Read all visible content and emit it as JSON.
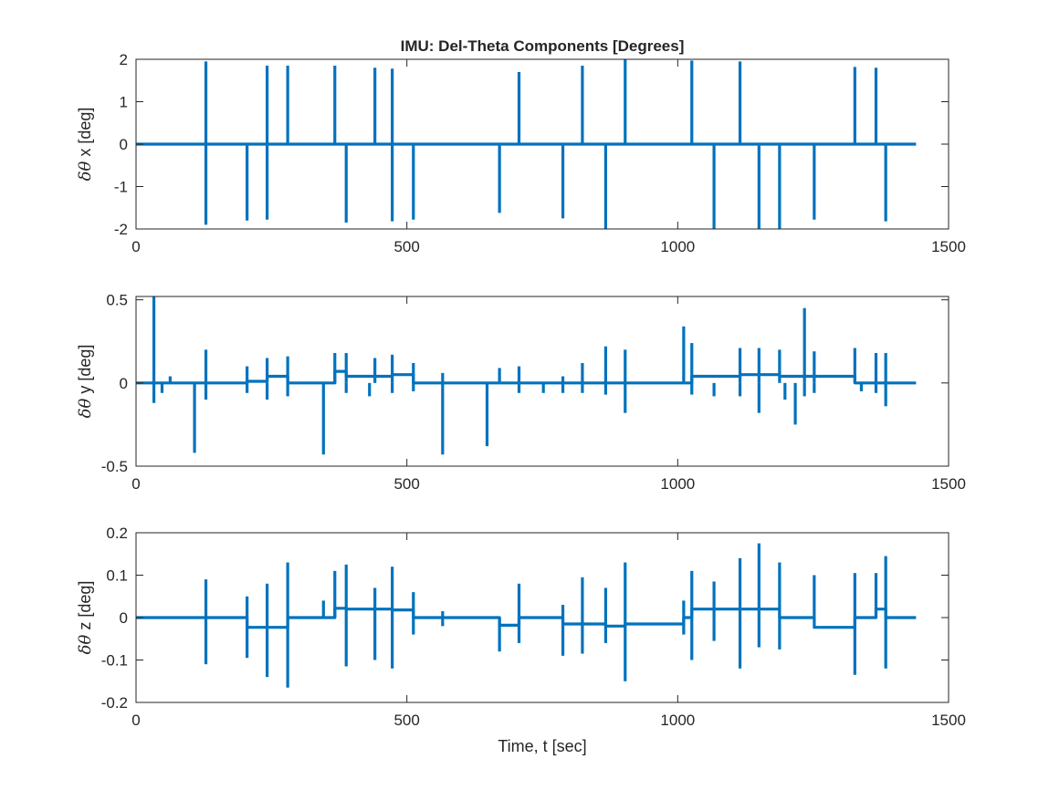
{
  "figure": {
    "title": "IMU: Del-Theta Components [Degrees]",
    "xlabel": "Time, t [sec]"
  },
  "colors": {
    "series": "#0072BD",
    "axes": "#262626",
    "background": "#ffffff"
  },
  "chart_data": [
    {
      "type": "line",
      "title": "IMU: Del-Theta Components [Degrees]",
      "ylabel_prefix": "δθ",
      "ylabel_suffix": " x [deg]",
      "xlim": [
        0,
        1500
      ],
      "ylim": [
        -2,
        2
      ],
      "xticks": [
        0,
        500,
        1000,
        1500
      ],
      "xtick_labels": [
        "0",
        "500",
        "1000",
        "1500"
      ],
      "yticks": [
        -2,
        -1,
        0,
        1,
        2
      ],
      "ytick_labels": [
        "-2",
        "-1",
        "0",
        "1",
        "2"
      ],
      "grid": false,
      "series": [
        {
          "baseline": [
            [
              0,
              0
            ],
            [
              1440,
              0
            ]
          ],
          "spikes": [
            [
              129,
              1.95
            ],
            [
              129,
              -1.9
            ],
            [
              205,
              -1.8
            ],
            [
              242,
              1.85
            ],
            [
              242,
              -1.78
            ],
            [
              280,
              1.85
            ],
            [
              367,
              1.85
            ],
            [
              388,
              -1.85
            ],
            [
              441,
              1.8
            ],
            [
              473,
              1.78
            ],
            [
              473,
              -1.82
            ],
            [
              512,
              -1.78
            ],
            [
              671,
              -1.62
            ],
            [
              707,
              1.7
            ],
            [
              788,
              -1.75
            ],
            [
              824,
              1.85
            ],
            [
              867,
              -2.0
            ],
            [
              903,
              2.0
            ],
            [
              1026,
              1.97
            ],
            [
              1067,
              -2.0
            ],
            [
              1115,
              1.95
            ],
            [
              1150,
              -2.0
            ],
            [
              1188,
              -2.0
            ],
            [
              1252,
              -1.78
            ],
            [
              1327,
              1.82
            ],
            [
              1366,
              1.8
            ],
            [
              1384,
              -1.82
            ]
          ]
        }
      ]
    },
    {
      "type": "line",
      "ylabel_prefix": "δθ",
      "ylabel_suffix": " y [deg]",
      "xlim": [
        0,
        1500
      ],
      "ylim": [
        -0.5,
        0.52
      ],
      "xticks": [
        0,
        500,
        1000,
        1500
      ],
      "xtick_labels": [
        "0",
        "500",
        "1000",
        "1500"
      ],
      "yticks": [
        -0.5,
        0,
        0.5
      ],
      "ytick_labels": [
        "-0.5",
        "0",
        "0.5"
      ],
      "grid": false,
      "series": [
        {
          "baseline": [
            [
              0,
              0
            ],
            [
              205,
              0
            ],
            [
              205,
              0.01
            ],
            [
              242,
              0.01
            ],
            [
              242,
              0.04
            ],
            [
              280,
              0.04
            ],
            [
              280,
              0
            ],
            [
              367,
              0
            ],
            [
              367,
              0.07
            ],
            [
              388,
              0.07
            ],
            [
              388,
              0.04
            ],
            [
              473,
              0.04
            ],
            [
              473,
              0.05
            ],
            [
              512,
              0.05
            ],
            [
              512,
              0
            ],
            [
              1026,
              0
            ],
            [
              1026,
              0.04
            ],
            [
              1115,
              0.04
            ],
            [
              1115,
              0.05
            ],
            [
              1188,
              0.05
            ],
            [
              1188,
              0.04
            ],
            [
              1327,
              0.04
            ],
            [
              1327,
              0
            ],
            [
              1440,
              0
            ]
          ],
          "spikes": [
            [
              33,
              0.52
            ],
            [
              33,
              -0.12
            ],
            [
              48,
              -0.06
            ],
            [
              63,
              0.04
            ],
            [
              108,
              -0.42
            ],
            [
              129,
              0.2
            ],
            [
              129,
              -0.1
            ],
            [
              205,
              0.1
            ],
            [
              205,
              -0.06
            ],
            [
              242,
              0.15
            ],
            [
              242,
              -0.1
            ],
            [
              280,
              0.16
            ],
            [
              280,
              -0.08
            ],
            [
              346,
              -0.43
            ],
            [
              367,
              0.18
            ],
            [
              388,
              0.18
            ],
            [
              388,
              -0.06
            ],
            [
              431,
              -0.08
            ],
            [
              441,
              0.15
            ],
            [
              473,
              0.17
            ],
            [
              473,
              -0.06
            ],
            [
              512,
              0.12
            ],
            [
              512,
              -0.05
            ],
            [
              566,
              -0.43
            ],
            [
              566,
              0.06
            ],
            [
              648,
              -0.38
            ],
            [
              671,
              0.09
            ],
            [
              707,
              0.1
            ],
            [
              707,
              -0.06
            ],
            [
              752,
              -0.06
            ],
            [
              788,
              0.04
            ],
            [
              788,
              -0.06
            ],
            [
              824,
              0.12
            ],
            [
              824,
              -0.06
            ],
            [
              867,
              0.22
            ],
            [
              867,
              -0.07
            ],
            [
              903,
              0.2
            ],
            [
              903,
              -0.18
            ],
            [
              1011,
              0.34
            ],
            [
              1026,
              0.24
            ],
            [
              1026,
              -0.07
            ],
            [
              1067,
              -0.08
            ],
            [
              1115,
              0.21
            ],
            [
              1115,
              -0.08
            ],
            [
              1150,
              0.21
            ],
            [
              1150,
              -0.18
            ],
            [
              1188,
              0.2
            ],
            [
              1198,
              -0.1
            ],
            [
              1217,
              -0.25
            ],
            [
              1234,
              0.45
            ],
            [
              1234,
              -0.08
            ],
            [
              1252,
              0.19
            ],
            [
              1252,
              -0.06
            ],
            [
              1327,
              0.21
            ],
            [
              1339,
              -0.05
            ],
            [
              1366,
              0.18
            ],
            [
              1366,
              -0.06
            ],
            [
              1384,
              0.18
            ],
            [
              1384,
              -0.14
            ]
          ]
        }
      ]
    },
    {
      "type": "line",
      "ylabel_prefix": "δθ",
      "ylabel_suffix": " z [deg]",
      "xlim": [
        0,
        1500
      ],
      "ylim": [
        -0.2,
        0.2
      ],
      "xticks": [
        0,
        500,
        1000,
        1500
      ],
      "xtick_labels": [
        "0",
        "500",
        "1000",
        "1500"
      ],
      "yticks": [
        -0.2,
        -0.1,
        0,
        0.1,
        0.2
      ],
      "ytick_labels": [
        "-0.2",
        "-0.1",
        "0",
        "0.1",
        "0.2"
      ],
      "grid": false,
      "series": [
        {
          "baseline": [
            [
              0,
              0
            ],
            [
              205,
              0
            ],
            [
              205,
              -0.023
            ],
            [
              280,
              -0.023
            ],
            [
              280,
              0
            ],
            [
              367,
              0
            ],
            [
              367,
              0.022
            ],
            [
              388,
              0.022
            ],
            [
              388,
              0.02
            ],
            [
              473,
              0.02
            ],
            [
              473,
              0.018
            ],
            [
              512,
              0.018
            ],
            [
              512,
              0
            ],
            [
              671,
              0
            ],
            [
              671,
              -0.018
            ],
            [
              707,
              -0.018
            ],
            [
              707,
              0
            ],
            [
              788,
              0
            ],
            [
              788,
              -0.015
            ],
            [
              867,
              -0.015
            ],
            [
              867,
              -0.02
            ],
            [
              903,
              -0.02
            ],
            [
              903,
              -0.015
            ],
            [
              1011,
              -0.015
            ],
            [
              1011,
              0
            ],
            [
              1026,
              0
            ],
            [
              1026,
              0.02
            ],
            [
              1188,
              0.02
            ],
            [
              1188,
              0
            ],
            [
              1252,
              0
            ],
            [
              1252,
              -0.023
            ],
            [
              1327,
              -0.023
            ],
            [
              1327,
              0
            ],
            [
              1366,
              0
            ],
            [
              1366,
              0.02
            ],
            [
              1384,
              0.02
            ],
            [
              1384,
              0
            ],
            [
              1440,
              0
            ]
          ],
          "spikes": [
            [
              129,
              0.09
            ],
            [
              129,
              -0.11
            ],
            [
              205,
              0.05
            ],
            [
              205,
              -0.095
            ],
            [
              242,
              0.08
            ],
            [
              242,
              -0.14
            ],
            [
              280,
              0.13
            ],
            [
              280,
              -0.165
            ],
            [
              346,
              0.04
            ],
            [
              367,
              0.11
            ],
            [
              388,
              0.125
            ],
            [
              388,
              -0.115
            ],
            [
              441,
              0.07
            ],
            [
              441,
              -0.1
            ],
            [
              473,
              0.12
            ],
            [
              473,
              -0.12
            ],
            [
              512,
              0.06
            ],
            [
              512,
              -0.04
            ],
            [
              566,
              0.015
            ],
            [
              566,
              -0.02
            ],
            [
              671,
              -0.08
            ],
            [
              707,
              0.08
            ],
            [
              707,
              -0.06
            ],
            [
              788,
              0.03
            ],
            [
              788,
              -0.09
            ],
            [
              824,
              0.095
            ],
            [
              824,
              -0.085
            ],
            [
              867,
              0.07
            ],
            [
              867,
              -0.06
            ],
            [
              903,
              0.13
            ],
            [
              903,
              -0.15
            ],
            [
              1011,
              0.04
            ],
            [
              1011,
              -0.04
            ],
            [
              1026,
              0.11
            ],
            [
              1026,
              -0.1
            ],
            [
              1067,
              0.085
            ],
            [
              1067,
              -0.055
            ],
            [
              1115,
              0.14
            ],
            [
              1115,
              -0.12
            ],
            [
              1150,
              0.175
            ],
            [
              1150,
              -0.07
            ],
            [
              1188,
              0.13
            ],
            [
              1188,
              -0.075
            ],
            [
              1252,
              0.1
            ],
            [
              1327,
              0.105
            ],
            [
              1327,
              -0.135
            ],
            [
              1366,
              0.105
            ],
            [
              1384,
              0.145
            ],
            [
              1384,
              -0.12
            ]
          ]
        }
      ]
    }
  ]
}
